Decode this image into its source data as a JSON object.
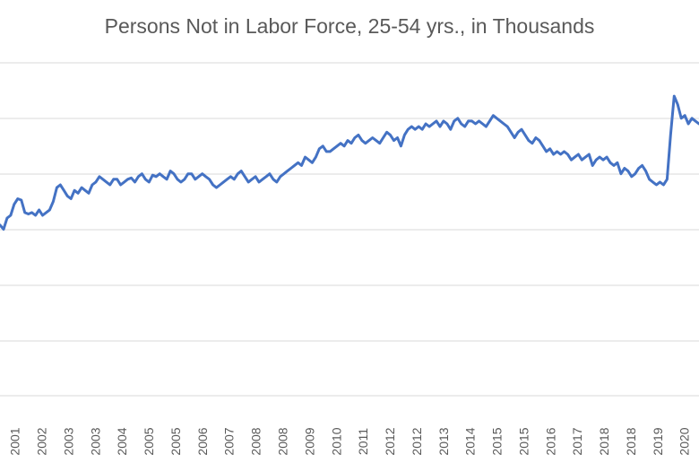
{
  "chart_data": {
    "type": "line",
    "title": "Persons Not in Labor Force, 25-54 yrs.,  in Thousands",
    "xlabel": "",
    "ylabel": "",
    "x_tick_labels": [
      "2001",
      "2002",
      "2003",
      "2003",
      "2004",
      "2005",
      "2005",
      "2006",
      "2007",
      "2008",
      "2008",
      "2009",
      "2010",
      "2011",
      "2012",
      "2012",
      "2013",
      "2014",
      "2015",
      "2015",
      "2016",
      "2017",
      "2018",
      "2018",
      "2019",
      "2020"
    ],
    "grid": true,
    "legend": "none",
    "series": [
      {
        "color": "#4472c4",
        "points": [
          [
            2000.85,
            0.615
          ],
          [
            2000.95,
            0.6
          ],
          [
            2001.05,
            0.64
          ],
          [
            2001.15,
            0.65
          ],
          [
            2001.25,
            0.69
          ],
          [
            2001.35,
            0.71
          ],
          [
            2001.45,
            0.705
          ],
          [
            2001.55,
            0.66
          ],
          [
            2001.65,
            0.655
          ],
          [
            2001.75,
            0.66
          ],
          [
            2001.85,
            0.65
          ],
          [
            2001.95,
            0.67
          ],
          [
            2002.05,
            0.65
          ],
          [
            2002.15,
            0.66
          ],
          [
            2002.25,
            0.67
          ],
          [
            2002.35,
            0.7
          ],
          [
            2002.45,
            0.75
          ],
          [
            2002.55,
            0.76
          ],
          [
            2002.65,
            0.74
          ],
          [
            2002.75,
            0.72
          ],
          [
            2002.85,
            0.71
          ],
          [
            2002.95,
            0.74
          ],
          [
            2003.05,
            0.73
          ],
          [
            2003.15,
            0.75
          ],
          [
            2003.25,
            0.74
          ],
          [
            2003.35,
            0.73
          ],
          [
            2003.45,
            0.76
          ],
          [
            2003.55,
            0.77
          ],
          [
            2003.65,
            0.79
          ],
          [
            2003.75,
            0.78
          ],
          [
            2003.85,
            0.77
          ],
          [
            2003.95,
            0.76
          ],
          [
            2004.05,
            0.78
          ],
          [
            2004.15,
            0.78
          ],
          [
            2004.25,
            0.76
          ],
          [
            2004.35,
            0.77
          ],
          [
            2004.45,
            0.78
          ],
          [
            2004.55,
            0.785
          ],
          [
            2004.65,
            0.77
          ],
          [
            2004.75,
            0.79
          ],
          [
            2004.85,
            0.8
          ],
          [
            2004.95,
            0.78
          ],
          [
            2005.05,
            0.77
          ],
          [
            2005.15,
            0.795
          ],
          [
            2005.25,
            0.79
          ],
          [
            2005.35,
            0.8
          ],
          [
            2005.45,
            0.79
          ],
          [
            2005.55,
            0.78
          ],
          [
            2005.65,
            0.81
          ],
          [
            2005.75,
            0.8
          ],
          [
            2005.85,
            0.78
          ],
          [
            2005.95,
            0.77
          ],
          [
            2006.05,
            0.78
          ],
          [
            2006.15,
            0.8
          ],
          [
            2006.25,
            0.8
          ],
          [
            2006.35,
            0.78
          ],
          [
            2006.45,
            0.79
          ],
          [
            2006.55,
            0.8
          ],
          [
            2006.65,
            0.79
          ],
          [
            2006.75,
            0.78
          ],
          [
            2006.85,
            0.76
          ],
          [
            2006.95,
            0.75
          ],
          [
            2007.05,
            0.76
          ],
          [
            2007.15,
            0.77
          ],
          [
            2007.25,
            0.78
          ],
          [
            2007.35,
            0.79
          ],
          [
            2007.45,
            0.78
          ],
          [
            2007.55,
            0.8
          ],
          [
            2007.65,
            0.81
          ],
          [
            2007.75,
            0.79
          ],
          [
            2007.85,
            0.77
          ],
          [
            2007.95,
            0.78
          ],
          [
            2008.05,
            0.79
          ],
          [
            2008.15,
            0.77
          ],
          [
            2008.25,
            0.78
          ],
          [
            2008.35,
            0.79
          ],
          [
            2008.45,
            0.8
          ],
          [
            2008.55,
            0.78
          ],
          [
            2008.65,
            0.77
          ],
          [
            2008.75,
            0.79
          ],
          [
            2008.85,
            0.8
          ],
          [
            2008.95,
            0.81
          ],
          [
            2009.05,
            0.82
          ],
          [
            2009.15,
            0.83
          ],
          [
            2009.25,
            0.84
          ],
          [
            2009.35,
            0.83
          ],
          [
            2009.45,
            0.86
          ],
          [
            2009.55,
            0.85
          ],
          [
            2009.65,
            0.84
          ],
          [
            2009.75,
            0.86
          ],
          [
            2009.85,
            0.89
          ],
          [
            2009.95,
            0.9
          ],
          [
            2010.05,
            0.88
          ],
          [
            2010.15,
            0.88
          ],
          [
            2010.25,
            0.89
          ],
          [
            2010.35,
            0.9
          ],
          [
            2010.45,
            0.91
          ],
          [
            2010.55,
            0.9
          ],
          [
            2010.65,
            0.92
          ],
          [
            2010.75,
            0.91
          ],
          [
            2010.85,
            0.93
          ],
          [
            2010.95,
            0.94
          ],
          [
            2011.05,
            0.92
          ],
          [
            2011.15,
            0.91
          ],
          [
            2011.25,
            0.92
          ],
          [
            2011.35,
            0.93
          ],
          [
            2011.45,
            0.92
          ],
          [
            2011.55,
            0.91
          ],
          [
            2011.65,
            0.93
          ],
          [
            2011.75,
            0.95
          ],
          [
            2011.85,
            0.94
          ],
          [
            2011.95,
            0.92
          ],
          [
            2012.05,
            0.93
          ],
          [
            2012.15,
            0.9
          ],
          [
            2012.25,
            0.94
          ],
          [
            2012.35,
            0.96
          ],
          [
            2012.45,
            0.97
          ],
          [
            2012.55,
            0.96
          ],
          [
            2012.65,
            0.97
          ],
          [
            2012.75,
            0.96
          ],
          [
            2012.85,
            0.98
          ],
          [
            2012.95,
            0.97
          ],
          [
            2013.05,
            0.98
          ],
          [
            2013.15,
            0.99
          ],
          [
            2013.25,
            0.97
          ],
          [
            2013.35,
            0.99
          ],
          [
            2013.45,
            0.98
          ],
          [
            2013.55,
            0.96
          ],
          [
            2013.65,
            0.99
          ],
          [
            2013.75,
            1.0
          ],
          [
            2013.85,
            0.98
          ],
          [
            2013.95,
            0.97
          ],
          [
            2014.05,
            0.99
          ],
          [
            2014.15,
            0.99
          ],
          [
            2014.25,
            0.98
          ],
          [
            2014.35,
            0.99
          ],
          [
            2014.45,
            0.98
          ],
          [
            2014.55,
            0.97
          ],
          [
            2014.65,
            0.99
          ],
          [
            2014.75,
            1.01
          ],
          [
            2014.85,
            1.0
          ],
          [
            2014.95,
            0.99
          ],
          [
            2015.05,
            0.98
          ],
          [
            2015.15,
            0.97
          ],
          [
            2015.25,
            0.95
          ],
          [
            2015.35,
            0.93
          ],
          [
            2015.45,
            0.95
          ],
          [
            2015.55,
            0.96
          ],
          [
            2015.65,
            0.94
          ],
          [
            2015.75,
            0.92
          ],
          [
            2015.85,
            0.91
          ],
          [
            2015.95,
            0.93
          ],
          [
            2016.05,
            0.92
          ],
          [
            2016.15,
            0.9
          ],
          [
            2016.25,
            0.88
          ],
          [
            2016.35,
            0.89
          ],
          [
            2016.45,
            0.87
          ],
          [
            2016.55,
            0.88
          ],
          [
            2016.65,
            0.87
          ],
          [
            2016.75,
            0.88
          ],
          [
            2016.85,
            0.87
          ],
          [
            2016.95,
            0.85
          ],
          [
            2017.05,
            0.86
          ],
          [
            2017.15,
            0.87
          ],
          [
            2017.25,
            0.85
          ],
          [
            2017.35,
            0.86
          ],
          [
            2017.45,
            0.87
          ],
          [
            2017.55,
            0.83
          ],
          [
            2017.65,
            0.85
          ],
          [
            2017.75,
            0.86
          ],
          [
            2017.85,
            0.85
          ],
          [
            2017.95,
            0.86
          ],
          [
            2018.05,
            0.84
          ],
          [
            2018.15,
            0.83
          ],
          [
            2018.25,
            0.84
          ],
          [
            2018.35,
            0.8
          ],
          [
            2018.45,
            0.82
          ],
          [
            2018.55,
            0.81
          ],
          [
            2018.65,
            0.79
          ],
          [
            2018.75,
            0.8
          ],
          [
            2018.85,
            0.82
          ],
          [
            2018.95,
            0.83
          ],
          [
            2019.05,
            0.81
          ],
          [
            2019.15,
            0.78
          ],
          [
            2019.25,
            0.77
          ],
          [
            2019.35,
            0.76
          ],
          [
            2019.45,
            0.77
          ],
          [
            2019.55,
            0.76
          ],
          [
            2019.65,
            0.78
          ],
          [
            2019.75,
            0.94
          ],
          [
            2019.85,
            1.08
          ],
          [
            2019.95,
            1.05
          ],
          [
            2020.05,
            1.0
          ],
          [
            2020.15,
            1.01
          ],
          [
            2020.25,
            0.98
          ],
          [
            2020.35,
            1.0
          ],
          [
            2020.45,
            0.99
          ],
          [
            2020.55,
            0.98
          ]
        ]
      }
    ]
  }
}
